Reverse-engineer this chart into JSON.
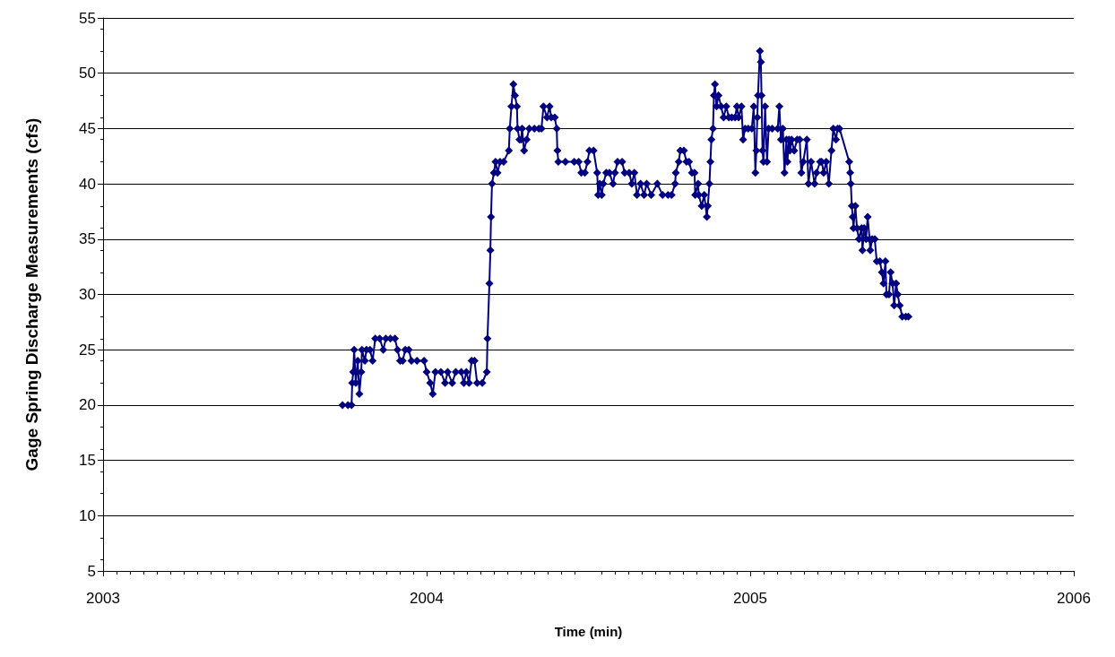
{
  "chart_data": {
    "type": "line",
    "xlabel": "Time (min)",
    "ylabel": "Gage Spring Discharge Measurements (cfs)",
    "xlim": [
      2003,
      2006
    ],
    "xticks": [
      2003,
      2004,
      2005,
      2006
    ],
    "ylim": [
      5,
      55
    ],
    "yticks": [
      5,
      10,
      15,
      20,
      25,
      30,
      35,
      40,
      45,
      50,
      55
    ],
    "grid": "y",
    "marker": "diamond",
    "line_style": "solid",
    "series": [
      {
        "color": "#000080",
        "x": [
          2003.74,
          2003.757,
          2003.768,
          2003.77,
          2003.773,
          2003.776,
          2003.781,
          2003.787,
          2003.792,
          2003.798,
          2003.8,
          2003.809,
          2003.814,
          2003.825,
          2003.833,
          2003.841,
          2003.855,
          2003.866,
          2003.874,
          2003.888,
          2003.902,
          2003.91,
          2003.918,
          2003.926,
          2003.934,
          2003.945,
          2003.953,
          2003.97,
          2003.992,
          2004.0,
          2004.011,
          2004.019,
          2004.027,
          2004.044,
          2004.057,
          2004.065,
          2004.079,
          2004.09,
          2004.107,
          2004.115,
          2004.123,
          2004.131,
          2004.139,
          2004.148,
          2004.156,
          2004.172,
          2004.186,
          2004.188,
          2004.194,
          2004.197,
          2004.199,
          2004.202,
          2004.208,
          2004.213,
          2004.219,
          2004.227,
          2004.238,
          2004.254,
          2004.257,
          2004.262,
          2004.268,
          2004.273,
          2004.279,
          2004.281,
          2004.287,
          2004.292,
          2004.295,
          2004.301,
          2004.309,
          2004.317,
          2004.333,
          2004.347,
          2004.355,
          2004.361,
          2004.372,
          2004.38,
          2004.385,
          2004.396,
          2004.402,
          2004.404,
          2004.407,
          2004.429,
          2004.456,
          2004.47,
          2004.478,
          2004.489,
          2004.497,
          2004.503,
          2004.516,
          2004.527,
          2004.53,
          2004.535,
          2004.541,
          2004.546,
          2004.555,
          2004.565,
          2004.576,
          2004.582,
          2004.59,
          2004.604,
          2004.612,
          2004.626,
          2004.634,
          2004.642,
          2004.65,
          2004.661,
          2004.672,
          2004.68,
          2004.694,
          2004.713,
          2004.729,
          2004.746,
          2004.757,
          2004.768,
          2004.77,
          2004.779,
          2004.784,
          2004.795,
          2004.803,
          2004.811,
          2004.82,
          2004.828,
          2004.83,
          2004.839,
          2004.841,
          2004.85,
          2004.858,
          2004.866,
          2004.869,
          2004.874,
          2004.877,
          2004.88,
          2004.885,
          2004.888,
          2004.891,
          2004.896,
          2004.902,
          2004.91,
          2004.918,
          2004.926,
          2004.934,
          2004.943,
          2004.953,
          2004.959,
          2004.964,
          2004.973,
          2004.978,
          2004.984,
          2004.994,
          2005.005,
          2005.011,
          2005.016,
          2005.019,
          2005.022,
          2005.024,
          2005.03,
          2005.033,
          2005.035,
          2005.038,
          2005.041,
          2005.046,
          2005.052,
          2005.057,
          2005.068,
          2005.085,
          2005.09,
          2005.095,
          2005.101,
          2005.106,
          2005.112,
          2005.115,
          2005.12,
          2005.123,
          2005.128,
          2005.136,
          2005.145,
          2005.153,
          2005.158,
          2005.164,
          2005.175,
          2005.18,
          2005.188,
          2005.199,
          2005.205,
          2005.216,
          2005.221,
          2005.227,
          2005.235,
          2005.243,
          2005.251,
          2005.257,
          2005.265,
          2005.27,
          2005.276,
          2005.306,
          2005.309,
          2005.311,
          2005.314,
          2005.317,
          2005.319,
          2005.325,
          2005.33,
          2005.336,
          2005.344,
          2005.347,
          2005.352,
          2005.358,
          2005.363,
          2005.369,
          2005.371,
          2005.377,
          2005.385,
          2005.391,
          2005.401,
          2005.407,
          2005.412,
          2005.418,
          2005.421,
          2005.429,
          2005.434,
          2005.44,
          2005.445,
          2005.451,
          2005.456,
          2005.462,
          2005.47,
          2005.481,
          2005.489
        ],
        "values": [
          20,
          20,
          20,
          22,
          23,
          25,
          22,
          24,
          21,
          23,
          25,
          24,
          25,
          25,
          24,
          26,
          26,
          25,
          26,
          26,
          26,
          25,
          24,
          24,
          25,
          25,
          24,
          24,
          24,
          23,
          22,
          21,
          23,
          23,
          22,
          23,
          22,
          23,
          23,
          22,
          23,
          22,
          24,
          24,
          22,
          22,
          23,
          26,
          31,
          34,
          37,
          40,
          41,
          42,
          41,
          42,
          42,
          43,
          45,
          47,
          49,
          48,
          47,
          45,
          44,
          44,
          45,
          43,
          44,
          45,
          45,
          45,
          45,
          47,
          46,
          47,
          46,
          46,
          45,
          43,
          42,
          42,
          42,
          42,
          41,
          41,
          42,
          43,
          43,
          41,
          39,
          40,
          39,
          40,
          41,
          41,
          40,
          41,
          42,
          42,
          41,
          41,
          40,
          41,
          39,
          40,
          39,
          40,
          39,
          40,
          39,
          39,
          39,
          40,
          41,
          42,
          43,
          43,
          42,
          42,
          41,
          41,
          39,
          40,
          39,
          38,
          39,
          37,
          38,
          40,
          42,
          44,
          45,
          48,
          49,
          47,
          48,
          47,
          46,
          47,
          46,
          46,
          46,
          47,
          46,
          47,
          44,
          45,
          45,
          45,
          47,
          41,
          43,
          46,
          48,
          52,
          51,
          48,
          43,
          42,
          47,
          42,
          45,
          45,
          45,
          47,
          44,
          45,
          41,
          44,
          42,
          44,
          43,
          44,
          43,
          44,
          44,
          41,
          42,
          44,
          40,
          42,
          40,
          41,
          42,
          42,
          41,
          42,
          40,
          43,
          45,
          44,
          45,
          45,
          42,
          41,
          40,
          38,
          37,
          36,
          38,
          36,
          35,
          36,
          34,
          36,
          35,
          37,
          35,
          34,
          35,
          35,
          33,
          33,
          32,
          31,
          33,
          30,
          30,
          32,
          31,
          29,
          31,
          30,
          29,
          28,
          28,
          28
        ]
      }
    ]
  }
}
